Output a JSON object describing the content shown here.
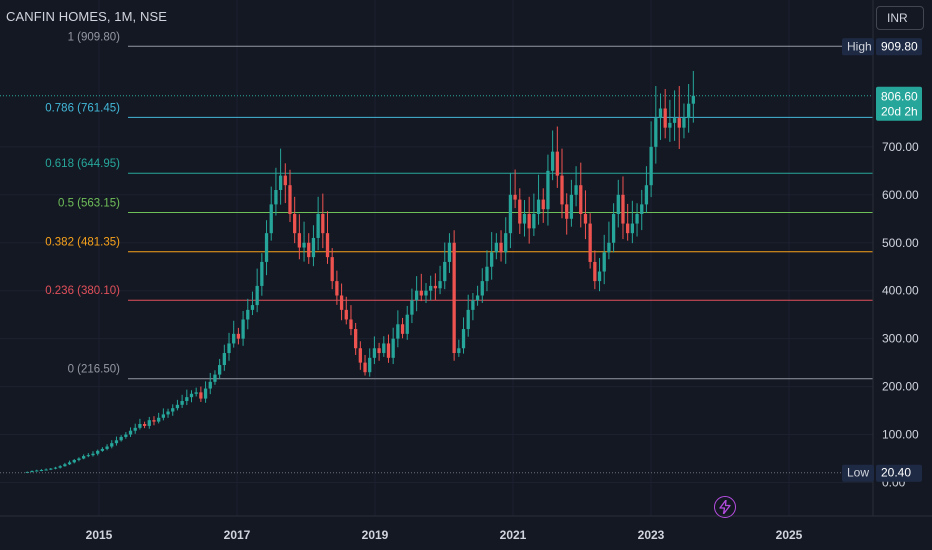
{
  "header": {
    "title": "CANFIN HOMES, 1M, NSE",
    "currency": "INR"
  },
  "colors": {
    "bg": "#141823",
    "up": "#26a69a",
    "down": "#ef5350",
    "text": "#d1d4dc",
    "muted": "#8a8e99"
  },
  "icons": {
    "alert": "lightning-icon"
  },
  "chart_data": {
    "type": "candlestick",
    "title": "CANFIN HOMES, 1M, NSE",
    "ylim": [
      0,
      1010
    ],
    "y_ticks": [
      "100.00",
      "200.00",
      "300.00",
      "400.00",
      "500.00",
      "600.00",
      "700.00"
    ],
    "y_bottom_tick": "0.00",
    "x_range": [
      "2014-01",
      "2026-03"
    ],
    "x_ticks": [
      "2015",
      "2017",
      "2019",
      "2021",
      "2023",
      "2025"
    ],
    "fib_levels": [
      {
        "ratio": "1",
        "price": 909.8,
        "label": "1 (909.80)",
        "color": "#9598a1"
      },
      {
        "ratio": "0.786",
        "price": 761.45,
        "label": "0.786 (761.45)",
        "color": "#42b8d8"
      },
      {
        "ratio": "0.618",
        "price": 644.95,
        "label": "0.618 (644.95)",
        "color": "#26a69a"
      },
      {
        "ratio": "0.5",
        "price": 563.15,
        "label": "0.5 (563.15)",
        "color": "#6fbf59"
      },
      {
        "ratio": "0.382",
        "price": 481.35,
        "label": "0.382 (481.35)",
        "color": "#f7a21b"
      },
      {
        "ratio": "0.236",
        "price": 380.1,
        "label": "0.236 (380.10)",
        "color": "#e0505a"
      },
      {
        "ratio": "0",
        "price": 216.5,
        "label": "0 (216.50)",
        "color": "#9598a1"
      }
    ],
    "high": {
      "label": "High",
      "value": 909.8,
      "text": "909.80"
    },
    "low": {
      "label": "Low",
      "value": 20.4,
      "text": "20.40"
    },
    "last": {
      "value": 806.6,
      "text": "806.60",
      "countdown": "20d 2h"
    },
    "closes": [
      22,
      24,
      25,
      26,
      27,
      29,
      31,
      34,
      38,
      42,
      47,
      50,
      55,
      57,
      60,
      66,
      70,
      75,
      82,
      88,
      95,
      100,
      108,
      114,
      122,
      118,
      130,
      127,
      135,
      142,
      148,
      155,
      162,
      170,
      178,
      185,
      188,
      175,
      196,
      210,
      225,
      245,
      270,
      290,
      310,
      300,
      340,
      360,
      370,
      410,
      460,
      520,
      580,
      610,
      640,
      620,
      560,
      520,
      490,
      500,
      470,
      510,
      560,
      520,
      470,
      420,
      390,
      360,
      340,
      320,
      280,
      250,
      230,
      260,
      280,
      270,
      290,
      260,
      300,
      330,
      310,
      350,
      380,
      400,
      390,
      400,
      410,
      405,
      420,
      460,
      500,
      270,
      280,
      320,
      360,
      380,
      390,
      420,
      450,
      480,
      500,
      480,
      520,
      600,
      590,
      540,
      560,
      530,
      560,
      590,
      570,
      650,
      690,
      640,
      580,
      550,
      600,
      620,
      560,
      540,
      460,
      420,
      440,
      480,
      500,
      560,
      600,
      540,
      520,
      540,
      560,
      580,
      620,
      700,
      760,
      780,
      740,
      750,
      760,
      740,
      760,
      790,
      806.6
    ]
  }
}
